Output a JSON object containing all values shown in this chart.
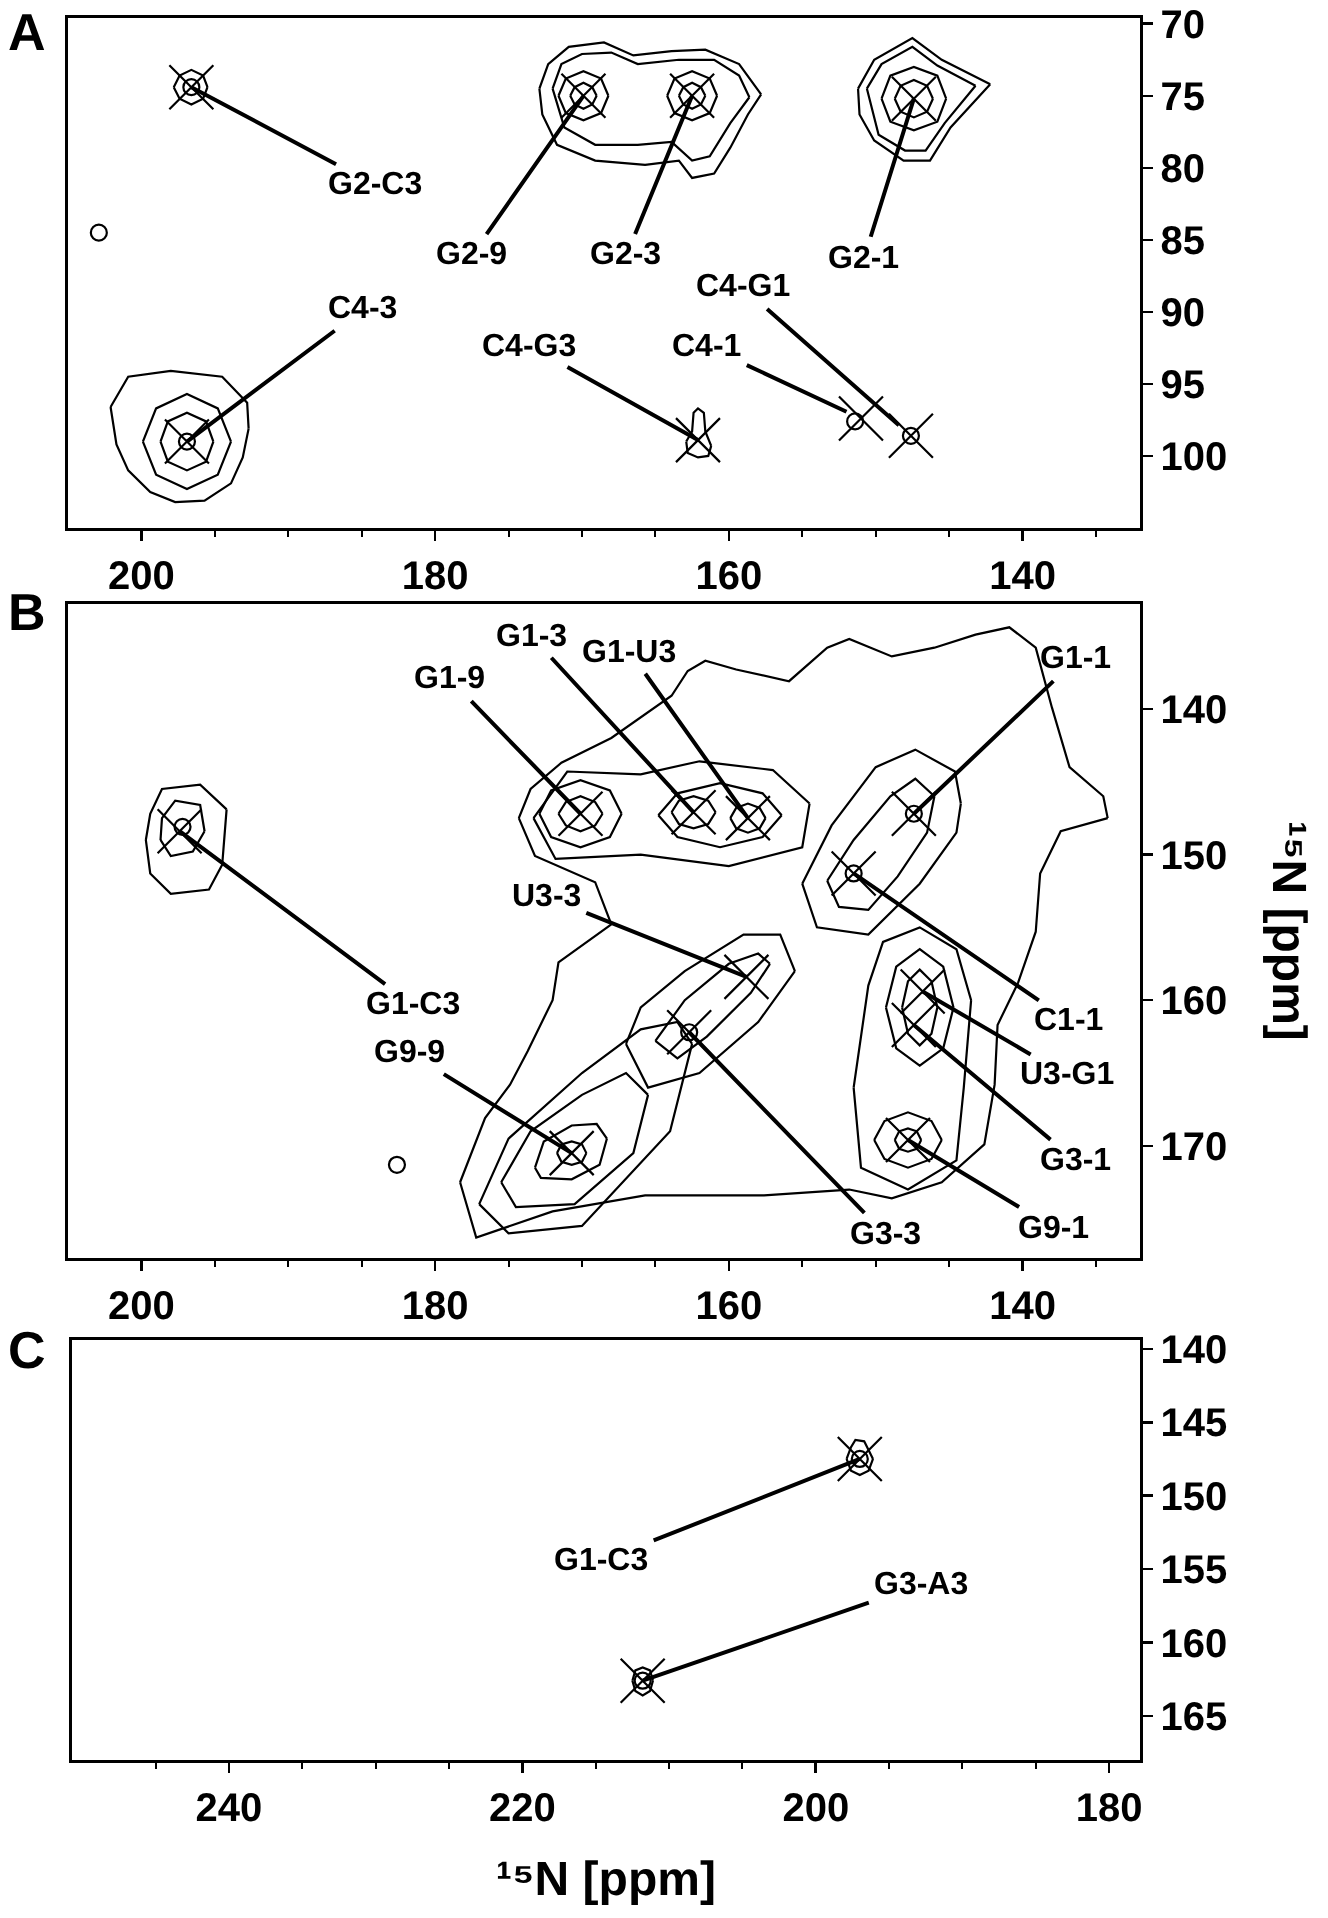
{
  "chart_data": [
    {
      "type": "scatter",
      "title": "A",
      "xlim": [
        205,
        132
      ],
      "ylim": [
        105,
        69.6
      ],
      "xticks": [
        200,
        {
          "value": 195,
          "label": null
        },
        {
          "value": 190,
          "label": null
        },
        {
          "value": 185,
          "label": null
        },
        180,
        {
          "value": 175,
          "label": null
        },
        {
          "value": 170,
          "label": null
        },
        {
          "value": 165,
          "label": null
        },
        160,
        {
          "value": 155,
          "label": null
        },
        {
          "value": 150,
          "label": null
        },
        {
          "value": 145,
          "label": null
        },
        140,
        {
          "value": 135,
          "label": null
        }
      ],
      "yticks": [
        70,
        75,
        80,
        85,
        90,
        95,
        100
      ],
      "series": [
        {
          "type": "line",
          "color": "#000000",
          "x": [
            195.5,
            195.8,
            196.6,
            197.4,
            197.8
          ],
          "values": [
            74.4,
            75.2,
            75.6,
            75.2,
            74.4
          ]
        },
        {
          "type": "line",
          "color": "#000000",
          "x": [
            195.5,
            195.8,
            196.6,
            197.4,
            197.8
          ],
          "values": [
            74.4,
            73.6,
            73.2,
            73.6,
            74.4
          ]
        },
        {
          "type": "line",
          "color": "#000000",
          "x": [
            172.9,
            172.3,
            170.9,
            168.5,
            166.5,
            163.9,
            161.6,
            159.3,
            157.8
          ],
          "values": [
            74.5,
            72.8,
            71.6,
            71.3,
            72.2,
            71.9,
            71.8,
            72.8,
            74.9
          ]
        },
        {
          "type": "line",
          "color": "#000000",
          "x": [
            157.8,
            158.7,
            159.9,
            161.0,
            162.5,
            163.4,
            165.7,
            169.1,
            171.7,
            172.7,
            172.9
          ],
          "values": [
            74.9,
            76.3,
            78.6,
            80.4,
            80.7,
            79.5,
            79.8,
            79.5,
            78.4,
            76.3,
            74.5
          ]
        },
        {
          "type": "line",
          "color": "#000000",
          "x": [
            172.0,
            171.4,
            170.0,
            168.0,
            166.2,
            163.4,
            161.0,
            159.3,
            158.6
          ],
          "values": [
            74.5,
            72.8,
            72.1,
            72.0,
            72.8,
            72.5,
            72.5,
            73.6,
            75.1
          ]
        },
        {
          "type": "line",
          "color": "#000000",
          "x": [
            158.6,
            159.9,
            161.3,
            162.5,
            163.9,
            166.2,
            169.1,
            171.2,
            172.0
          ],
          "values": [
            75.1,
            76.9,
            79.2,
            79.5,
            78.2,
            78.4,
            78.4,
            77.2,
            74.5
          ]
        },
        {
          "type": "line",
          "color": "#000000",
          "x": [
            168.2,
            168.7,
            169.9,
            171.1,
            171.6
          ],
          "values": [
            75.0,
            76.2,
            76.7,
            76.2,
            75.0
          ]
        },
        {
          "type": "line",
          "color": "#000000",
          "x": [
            168.2,
            168.7,
            169.9,
            171.1,
            171.6
          ],
          "values": [
            75.0,
            73.8,
            73.3,
            73.8,
            75.0
          ]
        },
        {
          "type": "line",
          "color": "#000000",
          "x": [
            169.0,
            169.3,
            169.9,
            170.5,
            170.8
          ],
          "values": [
            75.0,
            75.6,
            75.9,
            75.6,
            75.0
          ]
        },
        {
          "type": "line",
          "color": "#000000",
          "x": [
            169.0,
            169.3,
            169.9,
            170.5,
            170.8
          ],
          "values": [
            75.0,
            74.4,
            74.1,
            74.4,
            75.0
          ]
        },
        {
          "type": "line",
          "color": "#000000",
          "x": [
            160.8,
            161.3,
            162.5,
            163.7,
            164.2
          ],
          "values": [
            75.0,
            76.2,
            76.7,
            76.2,
            75.0
          ]
        },
        {
          "type": "line",
          "color": "#000000",
          "x": [
            160.8,
            161.3,
            162.5,
            163.7,
            164.2
          ],
          "values": [
            75.0,
            73.8,
            73.3,
            73.8,
            75.0
          ]
        },
        {
          "type": "line",
          "color": "#000000",
          "x": [
            161.6,
            161.9,
            162.5,
            163.1,
            163.4
          ],
          "values": [
            75.0,
            75.6,
            75.9,
            75.6,
            75.0
          ]
        },
        {
          "type": "line",
          "color": "#000000",
          "x": [
            161.6,
            161.9,
            162.5,
            163.1,
            163.4
          ],
          "values": [
            75.0,
            74.4,
            74.1,
            74.4,
            75.0
          ]
        },
        {
          "type": "line",
          "color": "#000000",
          "x": [
            151.2,
            150.1,
            147.5,
            145.5,
            142.2
          ],
          "values": [
            74.5,
            72.5,
            71.0,
            72.5,
            74.2
          ]
        },
        {
          "type": "line",
          "color": "#000000",
          "x": [
            142.2,
            144.9,
            146.3,
            148.1,
            150.1,
            151.1,
            151.2
          ],
          "values": [
            74.2,
            77.2,
            79.5,
            79.5,
            78.1,
            76.3,
            74.5
          ]
        },
        {
          "type": "line",
          "color": "#000000",
          "x": [
            150.6,
            149.6,
            147.5,
            145.8,
            143.2
          ],
          "values": [
            74.5,
            72.8,
            71.6,
            72.9,
            74.3
          ]
        },
        {
          "type": "line",
          "color": "#000000",
          "x": [
            143.2,
            145.3,
            146.6,
            148.0,
            149.8,
            150.6
          ],
          "values": [
            74.3,
            76.9,
            78.8,
            78.8,
            77.7,
            74.5
          ]
        },
        {
          "type": "line",
          "color": "#000000",
          "x": [
            145.2,
            145.8,
            147.4,
            149.0,
            149.6
          ],
          "values": [
            75.2,
            76.8,
            77.4,
            76.8,
            75.2
          ]
        },
        {
          "type": "line",
          "color": "#000000",
          "x": [
            145.2,
            145.8,
            147.4,
            149.0,
            149.6
          ],
          "values": [
            75.2,
            73.6,
            73.0,
            73.6,
            75.2
          ]
        },
        {
          "type": "line",
          "color": "#000000",
          "x": [
            146.1,
            146.5,
            147.4,
            148.3,
            148.7
          ],
          "values": [
            75.2,
            76.1,
            76.5,
            76.1,
            75.2
          ]
        },
        {
          "type": "line",
          "color": "#000000",
          "x": [
            146.1,
            146.5,
            147.4,
            148.3,
            148.7
          ],
          "values": [
            75.2,
            74.3,
            73.9,
            74.3,
            75.2
          ]
        },
        {
          "type": "line",
          "color": "#000000",
          "x": [
            202.1,
            200.9,
            198.0,
            194.5,
            192.8,
            192.7
          ],
          "values": [
            96.6,
            94.5,
            94.1,
            94.5,
            96.3,
            98.1
          ]
        },
        {
          "type": "line",
          "color": "#000000",
          "x": [
            192.7,
            193.1,
            193.9,
            195.7,
            197.7,
            199.4,
            200.9,
            201.7,
            202.1
          ],
          "values": [
            98.1,
            100.1,
            101.9,
            103.1,
            103.2,
            102.5,
            101.0,
            99.2,
            96.6
          ]
        },
        {
          "type": "line",
          "color": "#000000",
          "x": [
            193.9,
            194.8,
            196.9,
            199.0,
            199.9
          ],
          "values": [
            99.0,
            101.3,
            102.3,
            101.3,
            99.0
          ]
        },
        {
          "type": "line",
          "color": "#000000",
          "x": [
            193.9,
            194.8,
            196.9,
            199.0,
            199.9
          ],
          "values": [
            99.0,
            96.7,
            95.7,
            96.7,
            99.0
          ]
        },
        {
          "type": "line",
          "color": "#000000",
          "x": [
            195.1,
            195.6,
            196.9,
            198.2,
            198.7
          ],
          "values": [
            99.0,
            100.4,
            101.0,
            100.4,
            99.0
          ]
        },
        {
          "type": "line",
          "color": "#000000",
          "x": [
            195.1,
            195.6,
            196.9,
            198.2,
            198.7
          ],
          "values": [
            99.0,
            97.6,
            97.0,
            97.6,
            99.0
          ]
        },
        {
          "type": "line",
          "color": "#000000",
          "x": [
            161.2,
            161.4,
            162.1,
            162.8,
            162.9
          ],
          "values": [
            99.3,
            100.0,
            100.1,
            99.8,
            99.0
          ]
        },
        {
          "type": "line",
          "color": "#000000",
          "x": [
            162.9,
            162.5,
            162.4,
            162.1,
            161.7,
            161.6,
            161.2
          ],
          "values": [
            99.0,
            98.3,
            97.0,
            96.7,
            97.0,
            98.3,
            99.3
          ]
        },
        {
          "type": "scatter",
          "color": "#000000",
          "marker": "circle",
          "x": [
            196.6,
            202.9,
            196.9,
            151.4,
            147.6
          ],
          "values": [
            74.4,
            84.5,
            99.0,
            97.6,
            98.6
          ]
        },
        {
          "type": "scatter",
          "color": "#000000",
          "marker": "cross",
          "x": [
            196.6,
            169.9,
            162.5,
            147.4,
            196.9,
            162.1,
            151.0,
            147.6
          ],
          "values": [
            74.4,
            75.0,
            75.0,
            75.2,
            99.0,
            98.9,
            97.4,
            98.6
          ]
        }
      ],
      "annotations": [
        {
          "text": "G2-C3",
          "x": 196.6,
          "y": 74.4
        },
        {
          "text": "G2-9",
          "x": 169.9,
          "y": 75.0
        },
        {
          "text": "G2-3",
          "x": 162.5,
          "y": 75.0
        },
        {
          "text": "G2-1",
          "x": 147.4,
          "y": 75.2
        },
        {
          "text": "C4-3",
          "x": 196.9,
          "y": 99.0
        },
        {
          "text": "C4-G3",
          "x": 162.1,
          "y": 98.9
        },
        {
          "text": "C4-1",
          "x": 151.0,
          "y": 97.4
        },
        {
          "text": "C4-G1",
          "x": 147.6,
          "y": 98.6
        }
      ]
    },
    {
      "type": "scatter",
      "title": "B",
      "ylabel": "¹⁵N [ppm]",
      "xlim": [
        205,
        132
      ],
      "ylim": [
        177.7,
        132.8
      ],
      "xticks": [
        200,
        {
          "value": 195,
          "label": null
        },
        {
          "value": 190,
          "label": null
        },
        {
          "value": 185,
          "label": null
        },
        180,
        {
          "value": 175,
          "label": null
        },
        {
          "value": 170,
          "label": null
        },
        {
          "value": 165,
          "label": null
        },
        160,
        {
          "value": 155,
          "label": null
        },
        {
          "value": 150,
          "label": null
        },
        {
          "value": 145,
          "label": null
        },
        140,
        {
          "value": 135,
          "label": null
        }
      ],
      "yticks": [
        140,
        150,
        160,
        170
      ],
      "series": [
        {
          "type": "line",
          "color": "#000000",
          "x": [
            174.3,
            173.5,
            171.4,
            168.0,
            163.9,
            162.8,
            161.6,
            159.5,
            155.9,
            153.3,
            151.8,
            148.9,
            146.0,
            143.2,
            140.9,
            139.1,
            138.0,
            136.8,
            134.5,
            134.2
          ],
          "values": [
            147.5,
            145.5,
            143.7,
            142.0,
            139.1,
            137.4,
            136.7,
            137.3,
            138.1,
            135.8,
            135.2,
            136.4,
            135.8,
            134.9,
            134.4,
            135.8,
            139.9,
            144.0,
            146.0,
            147.5
          ]
        },
        {
          "type": "line",
          "color": "#000000",
          "x": [
            134.2,
            137.4,
            138.8,
            139.1,
            140.3,
            141.7,
            141.9,
            142.6,
            145.5,
            148.9,
            151.8,
            157.6,
            165.7,
            172.0,
            177.2,
            178.3
          ],
          "values": [
            147.5,
            148.4,
            151.3,
            155.3,
            158.8,
            161.7,
            165.8,
            169.9,
            172.5,
            173.6,
            173.0,
            173.4,
            173.4,
            174.5,
            176.3,
            172.5
          ]
        },
        {
          "type": "line",
          "color": "#000000",
          "x": [
            178.3,
            176.6,
            174.9,
            173.7,
            172.0,
            171.6,
            168.0
          ],
          "values": [
            172.5,
            168.1,
            165.8,
            163.5,
            160.0,
            157.4,
            154.8
          ]
        },
        {
          "type": "line",
          "color": "#000000",
          "x": [
            168.0,
            169.1,
            173.2,
            174.3
          ],
          "values": [
            154.8,
            151.9,
            150.1,
            147.5
          ]
        },
        {
          "type": "line",
          "color": "#000000",
          "x": [
            173.3,
            171.8,
            166.0,
            160.0,
            155.0,
            154.5
          ],
          "values": [
            147.5,
            150.3,
            150.0,
            150.8,
            149.5,
            146.5
          ]
        },
        {
          "type": "line",
          "color": "#000000",
          "x": [
            154.5,
            157.0,
            162.0,
            166.0,
            171.0,
            173.3
          ],
          "values": [
            146.5,
            144.2,
            143.6,
            144.5,
            144.3,
            147.5
          ]
        },
        {
          "type": "line",
          "color": "#000000",
          "x": [
            167.3,
            168.1,
            170.1,
            172.1,
            172.9
          ],
          "values": [
            147.2,
            148.8,
            149.5,
            148.8,
            147.2
          ]
        },
        {
          "type": "line",
          "color": "#000000",
          "x": [
            167.3,
            168.1,
            170.1,
            172.1,
            172.9
          ],
          "values": [
            147.2,
            145.6,
            144.9,
            145.6,
            147.2
          ]
        },
        {
          "type": "line",
          "color": "#000000",
          "x": [
            168.6,
            169.1,
            170.1,
            171.1,
            171.6
          ],
          "values": [
            147.2,
            148.0,
            148.4,
            148.0,
            147.2
          ]
        },
        {
          "type": "line",
          "color": "#000000",
          "x": [
            168.6,
            169.1,
            170.1,
            171.1,
            171.6
          ],
          "values": [
            147.2,
            146.4,
            146.0,
            146.4,
            147.2
          ]
        },
        {
          "type": "line",
          "color": "#000000",
          "x": [
            156.4,
            157.7,
            160.6,
            163.5,
            164.8
          ],
          "values": [
            147.3,
            148.8,
            149.5,
            148.8,
            147.3
          ]
        },
        {
          "type": "line",
          "color": "#000000",
          "x": [
            156.4,
            157.7,
            160.6,
            163.5,
            164.8
          ],
          "values": [
            147.3,
            145.8,
            145.1,
            145.8,
            147.3
          ]
        },
        {
          "type": "line",
          "color": "#000000",
          "x": [
            160.9,
            161.4,
            162.4,
            163.4,
            163.9
          ],
          "values": [
            147.1,
            147.9,
            148.2,
            147.9,
            147.1
          ]
        },
        {
          "type": "line",
          "color": "#000000",
          "x": [
            160.9,
            161.4,
            162.4,
            163.4,
            163.9
          ],
          "values": [
            147.1,
            146.3,
            146.0,
            146.3,
            147.1
          ]
        },
        {
          "type": "line",
          "color": "#000000",
          "x": [
            157.5,
            157.9,
            158.7,
            159.5,
            159.9
          ],
          "values": [
            147.5,
            148.2,
            148.5,
            148.2,
            147.5
          ]
        },
        {
          "type": "line",
          "color": "#000000",
          "x": [
            157.5,
            157.9,
            158.7,
            159.5,
            159.9
          ],
          "values": [
            147.5,
            146.8,
            146.5,
            146.8,
            147.5
          ]
        },
        {
          "type": "line",
          "color": "#000000",
          "x": [
            199.7,
            199.4,
            198.6,
            196.0,
            194.2
          ],
          "values": [
            149.0,
            147.2,
            145.5,
            145.2,
            146.9
          ]
        },
        {
          "type": "line",
          "color": "#000000",
          "x": [
            194.2,
            194.5,
            195.4,
            198.0,
            199.4,
            199.7
          ],
          "values": [
            146.9,
            150.7,
            152.4,
            152.7,
            151.3,
            149.0
          ]
        },
        {
          "type": "line",
          "color": "#000000",
          "x": [
            198.7,
            198.6,
            197.7,
            196.0,
            195.7
          ],
          "values": [
            149.0,
            147.5,
            146.3,
            146.6,
            148.4
          ]
        },
        {
          "type": "line",
          "color": "#000000",
          "x": [
            195.7,
            196.5,
            198.0,
            198.7
          ],
          "values": [
            148.4,
            149.8,
            150.1,
            149.0
          ]
        },
        {
          "type": "line",
          "color": "#000000",
          "x": [
            153.3,
            152.5,
            150.5,
            148.5,
            146.5,
            146.0
          ],
          "values": [
            151.8,
            153.6,
            153.8,
            151.5,
            148.5,
            146.0
          ]
        },
        {
          "type": "line",
          "color": "#000000",
          "x": [
            146.0,
            147.3,
            149.0,
            151.5,
            153.3
          ],
          "values": [
            146.0,
            144.8,
            146.0,
            149.0,
            151.8
          ]
        },
        {
          "type": "line",
          "color": "#000000",
          "x": [
            155.0,
            154.0,
            150.5,
            147.0,
            144.5,
            144.2
          ],
          "values": [
            152.0,
            155.0,
            155.5,
            152.0,
            148.5,
            146.5
          ]
        },
        {
          "type": "line",
          "color": "#000000",
          "x": [
            144.2,
            144.6,
            147.3,
            150.0,
            153.0,
            155.0
          ],
          "values": [
            146.5,
            144.3,
            142.8,
            144.0,
            148.0,
            152.0
          ]
        },
        {
          "type": "line",
          "color": "#000000",
          "x": [
            165.0,
            163.5,
            161.5,
            158.5,
            157.2
          ],
          "values": [
            162.8,
            164.0,
            162.5,
            159.5,
            157.5
          ]
        },
        {
          "type": "line",
          "color": "#000000",
          "x": [
            157.2,
            158.0,
            160.0,
            163.0,
            165.0
          ],
          "values": [
            157.5,
            156.8,
            157.5,
            160.0,
            162.8
          ]
        },
        {
          "type": "line",
          "color": "#000000",
          "x": [
            167.0,
            165.5,
            162.0,
            158.0,
            155.5
          ],
          "values": [
            163.0,
            166.0,
            165.0,
            161.5,
            158.0
          ]
        },
        {
          "type": "line",
          "color": "#000000",
          "x": [
            155.5,
            156.5,
            159.0,
            163.0,
            166.0,
            167.0
          ],
          "values": [
            158.0,
            155.5,
            155.5,
            158.0,
            160.5,
            163.0
          ]
        },
        {
          "type": "line",
          "color": "#000000",
          "x": [
            145.8,
            146.2,
            147.0,
            147.8,
            148.2
          ],
          "values": [
            160.5,
            162.3,
            163.1,
            162.3,
            160.5
          ]
        },
        {
          "type": "line",
          "color": "#000000",
          "x": [
            145.8,
            146.2,
            147.0,
            147.8,
            148.2
          ],
          "values": [
            160.5,
            158.7,
            157.9,
            158.7,
            160.5
          ]
        },
        {
          "type": "line",
          "color": "#000000",
          "x": [
            144.7,
            145.4,
            147.0,
            148.6,
            149.3
          ],
          "values": [
            160.5,
            163.3,
            164.5,
            163.3,
            160.5
          ]
        },
        {
          "type": "line",
          "color": "#000000",
          "x": [
            144.7,
            145.4,
            147.0,
            148.6,
            149.3
          ],
          "values": [
            160.5,
            157.7,
            156.5,
            157.7,
            160.5
          ]
        },
        {
          "type": "line",
          "color": "#000000",
          "x": [
            143.5,
            144.0,
            144.5,
            147.8,
            151.0,
            151.5
          ],
          "values": [
            160.0,
            166.0,
            171.0,
            173.0,
            171.5,
            166.0
          ]
        },
        {
          "type": "line",
          "color": "#000000",
          "x": [
            151.5,
            150.5,
            149.5,
            147.0,
            144.5,
            143.5
          ],
          "values": [
            166.0,
            159.0,
            156.0,
            155.0,
            156.5,
            160.0
          ]
        },
        {
          "type": "line",
          "color": "#000000",
          "x": [
            146.9,
            147.2,
            147.8,
            148.4,
            148.7
          ],
          "values": [
            169.6,
            170.2,
            170.4,
            170.2,
            169.6
          ]
        },
        {
          "type": "line",
          "color": "#000000",
          "x": [
            146.9,
            147.2,
            147.8,
            148.4,
            148.7
          ],
          "values": [
            169.6,
            169.0,
            168.8,
            169.0,
            169.6
          ]
        },
        {
          "type": "line",
          "color": "#000000",
          "x": [
            145.5,
            146.2,
            147.8,
            149.4,
            150.1
          ],
          "values": [
            169.6,
            170.9,
            171.5,
            170.9,
            169.6
          ]
        },
        {
          "type": "line",
          "color": "#000000",
          "x": [
            145.5,
            146.2,
            147.8,
            149.4,
            150.1
          ],
          "values": [
            169.6,
            168.3,
            167.7,
            168.3,
            169.6
          ]
        },
        {
          "type": "line",
          "color": "#000000",
          "x": [
            169.7,
            170.0,
            170.7,
            171.4,
            171.7
          ],
          "values": [
            170.5,
            171.1,
            171.3,
            171.1,
            170.5
          ]
        },
        {
          "type": "line",
          "color": "#000000",
          "x": [
            169.7,
            170.0,
            170.7,
            171.4,
            171.7
          ],
          "values": [
            170.5,
            169.9,
            169.7,
            169.9,
            170.5
          ]
        },
        {
          "type": "line",
          "color": "#000000",
          "x": [
            168.3,
            168.8,
            170.7,
            172.8,
            173.2
          ],
          "values": [
            169.5,
            171.3,
            172.3,
            172.2,
            171.5
          ]
        },
        {
          "type": "line",
          "color": "#000000",
          "x": [
            173.2,
            172.6,
            170.7,
            169.0,
            168.3
          ],
          "values": [
            171.5,
            169.7,
            168.6,
            168.5,
            169.5
          ]
        },
        {
          "type": "line",
          "color": "#000000",
          "x": [
            165.5,
            166.5,
            170.5,
            174.5,
            175.5
          ],
          "values": [
            166.5,
            170.5,
            174.0,
            174.2,
            172.5
          ]
        },
        {
          "type": "line",
          "color": "#000000",
          "x": [
            175.5,
            173.5,
            170.0,
            167.0,
            165.5
          ],
          "values": [
            172.5,
            169.0,
            166.5,
            165.0,
            166.5
          ]
        },
        {
          "type": "line",
          "color": "#000000",
          "x": [
            162.5,
            164.0,
            170.0,
            175.0,
            177.0
          ],
          "values": [
            163.0,
            169.0,
            175.5,
            176.0,
            174.0
          ]
        },
        {
          "type": "line",
          "color": "#000000",
          "x": [
            177.0,
            175.0,
            170.0,
            166.0,
            163.5,
            162.5
          ],
          "values": [
            174.0,
            169.5,
            165.0,
            162.0,
            161.5,
            163.0
          ]
        },
        {
          "type": "scatter",
          "color": "#000000",
          "marker": "circle",
          "x": [
            197.2,
            182.6,
            151.5,
            147.4,
            162.7
          ],
          "values": [
            148.1,
            171.3,
            151.3,
            147.2,
            162.2
          ]
        },
        {
          "type": "scatter",
          "color": "#000000",
          "marker": "cross",
          "x": [
            170.1,
            162.4,
            158.7,
            147.4,
            197.4,
            158.8,
            151.5,
            146.8,
            147.4,
            170.7,
            147.8,
            162.7
          ],
          "values": [
            147.2,
            147.1,
            147.5,
            147.2,
            148.4,
            158.4,
            151.3,
            159.4,
            161.7,
            170.5,
            169.6,
            162.2
          ]
        }
      ],
      "annotations": [
        {
          "text": "G1-9",
          "x": 170.1,
          "y": 147.2
        },
        {
          "text": "G1-3",
          "x": 162.4,
          "y": 147.1
        },
        {
          "text": "G1-U3",
          "x": 158.7,
          "y": 147.5
        },
        {
          "text": "G1-1",
          "x": 147.4,
          "y": 147.2
        },
        {
          "text": "G1-C3",
          "x": 197.4,
          "y": 148.4
        },
        {
          "text": "U3-3",
          "x": 158.8,
          "y": 158.4
        },
        {
          "text": "C1-1",
          "x": 151.5,
          "y": 151.3
        },
        {
          "text": "U3-G1",
          "x": 146.8,
          "y": 159.4
        },
        {
          "text": "G3-1",
          "x": 147.4,
          "y": 161.7
        },
        {
          "text": "G9-9",
          "x": 170.7,
          "y": 170.5
        },
        {
          "text": "G9-1",
          "x": 147.8,
          "y": 169.6
        },
        {
          "text": "G3-3",
          "x": 162.7,
          "y": 162.2
        }
      ]
    },
    {
      "type": "scatter",
      "title": "C",
      "xlabel": "¹⁵N [ppm]",
      "xlim": [
        250.7,
        177.9
      ],
      "ylim": [
        168,
        139.4
      ],
      "xticks": [
        {
          "value": 245,
          "label": null
        },
        240,
        {
          "value": 235,
          "label": null
        },
        {
          "value": 230,
          "label": null
        },
        {
          "value": 225,
          "label": null
        },
        220,
        {
          "value": 215,
          "label": null
        },
        {
          "value": 210,
          "label": null
        },
        {
          "value": 205,
          "label": null
        },
        200,
        {
          "value": 195,
          "label": null
        },
        {
          "value": 190,
          "label": null
        },
        {
          "value": 185,
          "label": null
        },
        180
      ],
      "yticks": [
        140,
        145,
        150,
        155,
        160,
        165
      ],
      "series": [
        {
          "type": "line",
          "color": "#000000",
          "x": [
            196.1,
            196.4,
            197.0,
            197.6,
            197.9
          ],
          "values": [
            147.5,
            148.3,
            148.6,
            148.3,
            147.5
          ]
        },
        {
          "type": "line",
          "color": "#000000",
          "x": [
            196.1,
            196.7,
            197.3,
            197.6,
            197.9
          ],
          "values": [
            147.5,
            146.3,
            146.2,
            146.7,
            147.5
          ]
        },
        {
          "type": "line",
          "color": "#000000",
          "x": [
            211.1,
            211.3,
            211.8,
            212.3,
            212.5
          ],
          "values": [
            162.6,
            163.3,
            163.6,
            163.3,
            162.6
          ]
        },
        {
          "type": "line",
          "color": "#000000",
          "x": [
            211.1,
            211.3,
            211.8,
            212.3,
            212.5
          ],
          "values": [
            162.6,
            161.9,
            161.7,
            161.9,
            162.6
          ]
        },
        {
          "type": "scatter",
          "color": "#000000",
          "marker": "circle",
          "x": [
            197.0,
            211.8
          ],
          "values": [
            147.5,
            162.6
          ]
        },
        {
          "type": "scatter",
          "color": "#000000",
          "marker": "cross",
          "x": [
            197.0,
            211.8
          ],
          "values": [
            147.5,
            162.6
          ]
        }
      ],
      "annotations": [
        {
          "text": "G1-C3",
          "x": 197.0,
          "y": 147.5
        },
        {
          "text": "G3-A3",
          "x": 211.8,
          "y": 162.6
        }
      ]
    }
  ]
}
